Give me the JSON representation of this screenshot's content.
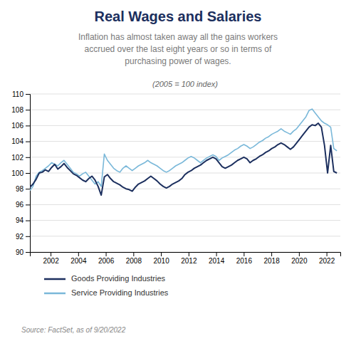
{
  "chart_data": {
    "type": "line",
    "title": "Real Wages and Salaries",
    "subtitle": "Inflation has almost taken away all the gains workers\naccrued over the last eight years or so in terms of\npurchasing power of wages.",
    "y_label": "(2005 = 100 index)",
    "source": "Source: FactSet, as of 9/20/2022",
    "x": [
      2000.5,
      2000.7247,
      2000.9495,
      2001.1742,
      2001.399,
      2001.6237,
      2001.8485,
      2002.0732,
      2002.298,
      2002.5227,
      2002.7475,
      2002.9722,
      2003.197,
      2003.4217,
      2003.6465,
      2003.8712,
      2004.096,
      2004.3207,
      2004.5455,
      2004.7702,
      2004.9949,
      2005.2197,
      2005.4444,
      2005.6692,
      2005.8939,
      2006.1187,
      2006.3434,
      2006.5682,
      2006.7929,
      2007.0177,
      2007.2424,
      2007.4672,
      2007.6919,
      2007.9167,
      2008.1414,
      2008.3662,
      2008.5909,
      2008.8157,
      2009.0404,
      2009.2652,
      2009.4899,
      2009.7146,
      2009.9394,
      2010.1641,
      2010.3889,
      2010.6136,
      2010.8384,
      2011.0631,
      2011.2879,
      2011.5126,
      2011.7374,
      2011.9621,
      2012.1869,
      2012.4116,
      2012.6364,
      2012.8611,
      2013.0859,
      2013.3106,
      2013.5354,
      2013.7601,
      2013.9848,
      2014.2096,
      2014.4343,
      2014.6591,
      2014.8838,
      2015.1086,
      2015.3333,
      2015.5581,
      2015.7828,
      2016.0076,
      2016.2323,
      2016.4571,
      2016.6818,
      2016.9066,
      2017.1313,
      2017.3561,
      2017.5808,
      2017.8056,
      2018.0303,
      2018.2551,
      2018.4798,
      2018.7045,
      2018.9293,
      2019.154,
      2019.3788,
      2019.6035,
      2019.8283,
      2020.053,
      2020.2778,
      2020.5025,
      2020.7273,
      2020.952,
      2021.1768,
      2021.4015,
      2021.6263,
      2021.851,
      2022.0758,
      2022.3005,
      2022.5253,
      2022.75
    ],
    "series": [
      {
        "name": "Goods Providing Industries",
        "color": "#1c2f5e",
        "values": [
          98.2,
          98.6,
          99.2,
          100.0,
          100.1,
          100.4,
          100.2,
          100.7,
          101.1,
          100.5,
          100.8,
          101.2,
          100.7,
          100.3,
          99.9,
          99.7,
          99.4,
          99.1,
          98.9,
          99.3,
          99.6,
          99.1,
          98.3,
          97.2,
          99.5,
          99.8,
          99.3,
          98.9,
          98.7,
          98.5,
          98.2,
          98.0,
          97.9,
          97.7,
          98.2,
          98.6,
          98.8,
          99.0,
          99.3,
          99.6,
          99.3,
          99.0,
          98.6,
          98.3,
          98.1,
          98.3,
          98.6,
          98.8,
          99.0,
          99.3,
          99.8,
          100.1,
          100.3,
          100.6,
          100.8,
          101.0,
          101.3,
          101.6,
          101.8,
          102.0,
          101.8,
          101.3,
          100.8,
          100.6,
          100.8,
          101.0,
          101.3,
          101.6,
          101.8,
          102.0,
          101.8,
          101.3,
          101.6,
          101.8,
          102.1,
          102.3,
          102.6,
          102.8,
          103.1,
          103.3,
          103.6,
          103.8,
          103.6,
          103.3,
          103.0,
          103.3,
          103.8,
          104.3,
          104.8,
          105.3,
          105.8,
          106.1,
          106.0,
          106.3,
          105.8,
          103.5,
          100.0,
          103.5,
          100.2,
          100.0
        ]
      },
      {
        "name": "Service Providing Industries",
        "color": "#7ab8d9",
        "values": [
          97.8,
          98.3,
          99.6,
          100.1,
          100.3,
          100.6,
          100.9,
          101.3,
          101.1,
          100.9,
          101.3,
          101.6,
          101.1,
          100.6,
          100.1,
          99.9,
          99.6,
          99.9,
          100.1,
          99.6,
          99.1,
          98.6,
          98.9,
          98.3,
          102.4,
          101.6,
          101.1,
          100.6,
          100.3,
          100.1,
          100.6,
          100.9,
          100.6,
          100.3,
          100.6,
          100.9,
          101.1,
          101.3,
          101.6,
          101.3,
          101.1,
          100.9,
          100.6,
          100.3,
          100.1,
          100.3,
          100.6,
          100.9,
          101.1,
          101.3,
          101.6,
          101.9,
          102.1,
          101.9,
          101.6,
          101.3,
          101.6,
          101.9,
          102.1,
          102.3,
          102.1,
          101.6,
          101.9,
          102.1,
          102.3,
          102.6,
          102.9,
          103.1,
          103.4,
          103.6,
          103.4,
          103.1,
          103.3,
          103.6,
          103.9,
          104.1,
          104.4,
          104.6,
          104.9,
          105.1,
          105.3,
          105.6,
          105.3,
          105.1,
          104.9,
          105.3,
          105.6,
          106.1,
          106.6,
          107.1,
          107.9,
          108.1,
          107.6,
          107.1,
          106.6,
          106.3,
          106.1,
          105.8,
          103.1,
          102.8
        ]
      }
    ],
    "xlim": [
      2000.5,
      2023.0
    ],
    "xticks": [
      2002,
      2004,
      2006,
      2008,
      2010,
      2012,
      2014,
      2016,
      2018,
      2020,
      2022
    ],
    "ylim": [
      90,
      110
    ],
    "yticks": [
      90,
      92,
      94,
      96,
      98,
      100,
      102,
      104,
      106,
      108,
      110
    ],
    "grid": true,
    "legend": "bottom"
  }
}
